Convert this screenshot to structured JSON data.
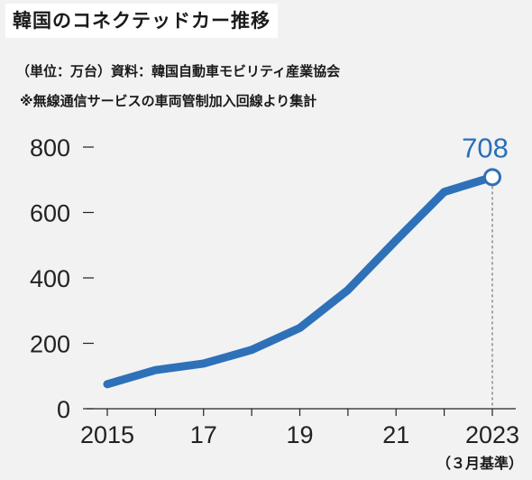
{
  "title": "韓国のコネクテッドカー推移",
  "notes": {
    "unit_source": "（単位：万台）資料：韓国自動車モビリティ産業協会",
    "remark": "※無線通信サービスの車両管制加入回線より集計"
  },
  "basis": "（３月基準）",
  "colors": {
    "line": "#2e71b8",
    "marker_fill": "#ffffff",
    "axis": "#222222"
  },
  "chart_data": {
    "type": "line",
    "title": "韓国のコネクテッドカー推移",
    "ylabel": "（単位：万台）",
    "xlabel": "",
    "x": [
      2015,
      2016,
      2017,
      2018,
      2019,
      2020,
      2021,
      2022,
      2023
    ],
    "xticks": [
      {
        "x": 2015,
        "label": "2015"
      },
      {
        "x": 2017,
        "label": "17"
      },
      {
        "x": 2019,
        "label": "19"
      },
      {
        "x": 2021,
        "label": "21"
      },
      {
        "x": 2023,
        "label": "2023"
      }
    ],
    "yticks": [
      {
        "y": 0,
        "label": "0"
      },
      {
        "y": 200,
        "label": "200"
      },
      {
        "y": 400,
        "label": "400"
      },
      {
        "y": 600,
        "label": "600"
      },
      {
        "y": 800,
        "label": "800"
      }
    ],
    "series": [
      {
        "values": [
          75,
          118,
          138,
          180,
          247,
          363,
          515,
          663,
          708
        ]
      }
    ],
    "ylim": [
      0,
      800
    ],
    "xlim": [
      2015,
      2023
    ],
    "annotation": {
      "x": 2023,
      "y": 708,
      "label": "708"
    },
    "grid": false
  }
}
